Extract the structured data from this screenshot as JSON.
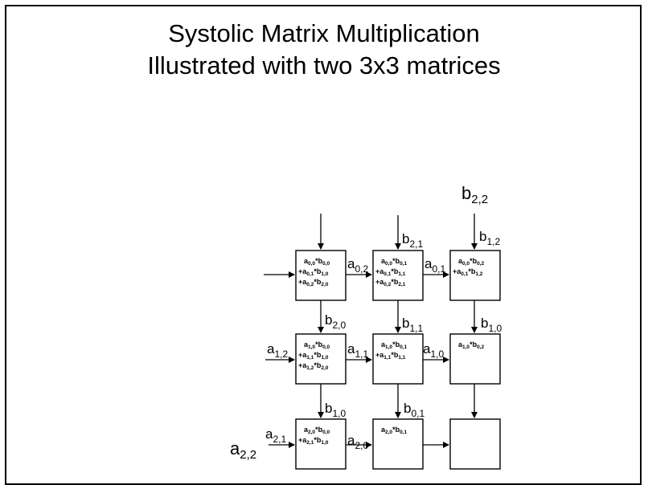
{
  "title_line1": "Systolic Matrix Multiplication",
  "title_line2": "Illustrated with two 3x3 matrices",
  "cells": [
    {
      "id": "0-0",
      "lines": [
        [
          "",
          "a",
          "0,0",
          "*b",
          "0,0"
        ],
        [
          "+",
          "a",
          "0,1",
          "*b",
          "1,0"
        ],
        [
          "+",
          "a",
          "0,2",
          "*b",
          "2,0"
        ]
      ]
    },
    {
      "id": "0-1",
      "lines": [
        [
          "",
          "a",
          "0,0",
          "*b",
          "0,1"
        ],
        [
          "+",
          "a",
          "0,1",
          "*b",
          "1,1"
        ],
        [
          "+",
          "a",
          "0,2",
          "*b",
          "2,1"
        ]
      ]
    },
    {
      "id": "0-2",
      "lines": [
        [
          "",
          "a",
          "0,0",
          "*b",
          "0,2"
        ],
        [
          "+",
          "a",
          "0,1",
          "*b",
          "1,2"
        ]
      ]
    },
    {
      "id": "1-0",
      "lines": [
        [
          "",
          "a",
          "1,0",
          "*b",
          "0,0"
        ],
        [
          "+",
          "a",
          "1,1",
          "*b",
          "1,0"
        ],
        [
          "+",
          "a",
          "1,2",
          "*b",
          "2,0"
        ]
      ]
    },
    {
      "id": "1-1",
      "lines": [
        [
          "",
          "a",
          "1,0",
          "*b",
          "0,1"
        ],
        [
          "+",
          "a",
          "1,1",
          "*b",
          "1,1"
        ]
      ]
    },
    {
      "id": "1-2",
      "lines": [
        [
          "",
          "a",
          "1,0",
          "*b",
          "0,2"
        ]
      ]
    },
    {
      "id": "2-0",
      "lines": [
        [
          "",
          "a",
          "2,0",
          "*b",
          "0,0"
        ],
        [
          "+",
          "a",
          "2,1",
          "*b",
          "1,0"
        ]
      ]
    },
    {
      "id": "2-1",
      "lines": [
        [
          "",
          "a",
          "2,0",
          "*b",
          "0,1"
        ]
      ]
    },
    {
      "id": "2-2",
      "lines": []
    }
  ],
  "flow_labels": [
    {
      "id": "a02",
      "base": "a",
      "sub": "0,2"
    },
    {
      "id": "a01",
      "base": "a",
      "sub": "0,1"
    },
    {
      "id": "a12",
      "base": "a",
      "sub": "1,2"
    },
    {
      "id": "a11",
      "base": "a",
      "sub": "1,1"
    },
    {
      "id": "a10",
      "base": "a",
      "sub": "1,0"
    },
    {
      "id": "a21",
      "base": "a",
      "sub": "2,1"
    },
    {
      "id": "a20",
      "base": "a",
      "sub": "2,0"
    },
    {
      "id": "a22",
      "base": "a",
      "sub": "2,2"
    },
    {
      "id": "b22",
      "base": "b",
      "sub": "2,2"
    },
    {
      "id": "b21",
      "base": "b",
      "sub": "2,1"
    },
    {
      "id": "b12",
      "base": "b",
      "sub": "1,2"
    },
    {
      "id": "b20",
      "base": "b",
      "sub": "2,0"
    },
    {
      "id": "b11",
      "base": "b",
      "sub": "1,1"
    },
    {
      "id": "b10top",
      "base": "b",
      "sub": "1,0"
    },
    {
      "id": "b10bot",
      "base": "b",
      "sub": "1,0"
    },
    {
      "id": "b01",
      "base": "b",
      "sub": "0,1"
    }
  ]
}
